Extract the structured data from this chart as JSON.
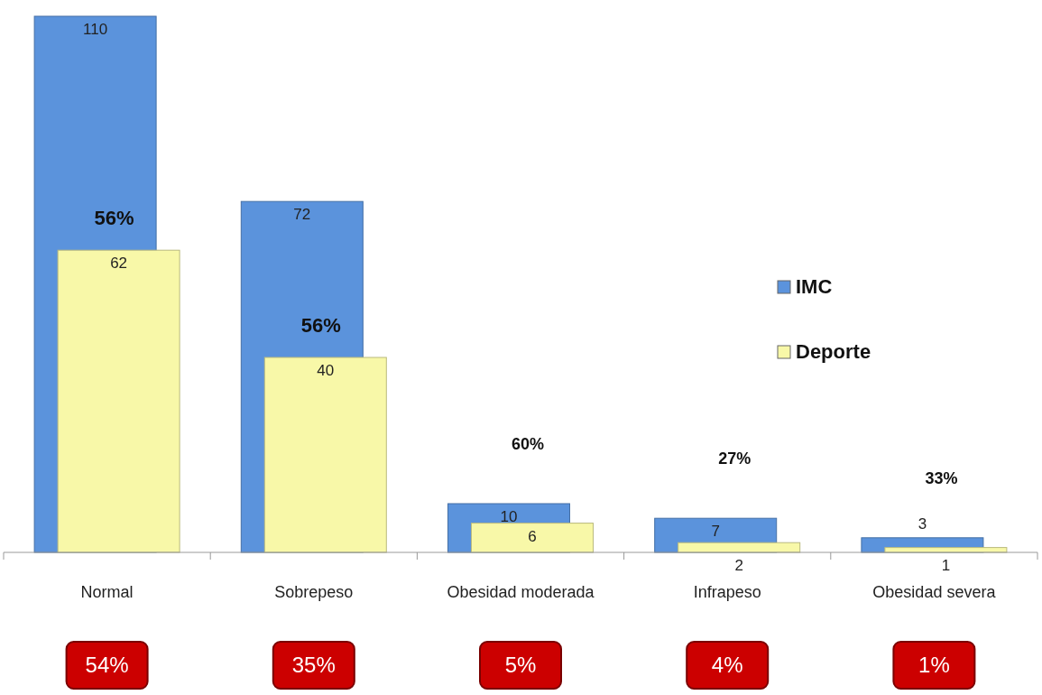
{
  "chart_data": {
    "type": "bar",
    "categories": [
      "Normal",
      "Sobrepeso",
      "Obesidad moderada",
      "Infrapeso",
      "Obesidad severa"
    ],
    "series": [
      {
        "name": "IMC",
        "color": "#5b93dc",
        "values": [
          110,
          72,
          10,
          7,
          3
        ]
      },
      {
        "name": "Deporte",
        "color": "#f8f8a8",
        "values": [
          62,
          40,
          6,
          2,
          1
        ]
      }
    ],
    "data_labels": true,
    "legend": "right",
    "annotations": [
      "56%",
      "56%",
      "60%",
      "27%",
      "33%",
      "54%",
      "35%",
      "5%",
      "4%",
      "1%"
    ]
  }
}
